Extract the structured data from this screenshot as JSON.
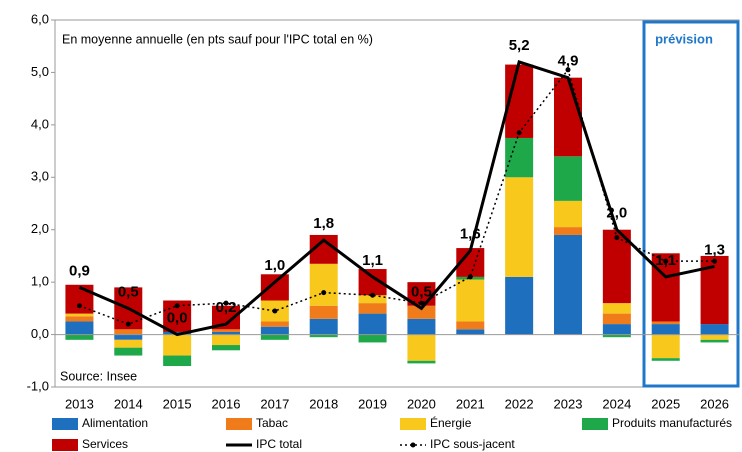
{
  "chart_data": {
    "type": "bar",
    "annotations": [
      "En moyenne annuelle (en pts sauf pour l'IPC total en %)",
      "Source: Insee",
      "prévision"
    ],
    "categories": [
      "2013",
      "2014",
      "2015",
      "2016",
      "2017",
      "2018",
      "2019",
      "2020",
      "2021",
      "2022",
      "2023",
      "2024",
      "2025",
      "2026"
    ],
    "ylim": [
      -1,
      6
    ],
    "yticks": [
      {
        "value": -1,
        "label": "-1,0"
      },
      {
        "value": 0,
        "label": "0,0"
      },
      {
        "value": 1,
        "label": "1,0"
      },
      {
        "value": 2,
        "label": "2,0"
      },
      {
        "value": 3,
        "label": "3,0"
      },
      {
        "value": 4,
        "label": "4,0"
      },
      {
        "value": 5,
        "label": "5,0"
      },
      {
        "value": 6,
        "label": "6,0"
      }
    ],
    "stacked": true,
    "series": [
      {
        "name": "Alimentation",
        "color": "#1f6fbf",
        "values": [
          0.25,
          -0.1,
          0.05,
          0.05,
          0.15,
          0.3,
          0.4,
          0.3,
          0.1,
          1.1,
          1.9,
          0.2,
          0.2,
          0.2
        ]
      },
      {
        "name": "Tabac",
        "color": "#f07b1b",
        "values": [
          0.1,
          0.1,
          0.0,
          0.05,
          0.1,
          0.25,
          0.2,
          0.25,
          0.15,
          0.0,
          0.15,
          0.2,
          0.05,
          0.0
        ]
      },
      {
        "name": "Énergie",
        "color": "#f8c81c",
        "values": [
          0.05,
          -0.15,
          -0.4,
          -0.2,
          0.4,
          0.8,
          0.15,
          -0.5,
          0.8,
          1.9,
          0.5,
          0.2,
          -0.45,
          -0.1
        ]
      },
      {
        "name": "Produits manufacturés",
        "color": "#1ea84a",
        "values": [
          -0.1,
          -0.15,
          -0.2,
          -0.1,
          -0.1,
          -0.05,
          -0.15,
          -0.05,
          0.05,
          0.75,
          0.85,
          -0.05,
          -0.05,
          -0.05
        ]
      },
      {
        "name": "Services",
        "color": "#c00000",
        "values": [
          0.55,
          0.8,
          0.6,
          0.45,
          0.5,
          0.55,
          0.5,
          0.45,
          0.55,
          1.4,
          1.5,
          1.4,
          1.3,
          1.3
        ]
      },
      {
        "name": "IPC total",
        "type": "line",
        "color": "#000000",
        "values": [
          0.9,
          0.5,
          0.0,
          0.2,
          1.0,
          1.8,
          1.1,
          0.5,
          1.6,
          5.2,
          4.9,
          2.0,
          1.1,
          1.3
        ],
        "value_labels": [
          "0,9",
          "0,5",
          "0,0",
          "0,2",
          "1,0",
          "1,8",
          "1,1",
          "0,5",
          "1,6",
          "5,2",
          "4,9",
          "2,0",
          "1,1",
          "1,3"
        ]
      },
      {
        "name": "IPC sous-jacent",
        "type": "line",
        "dashed": true,
        "color": "#000000",
        "values": [
          0.55,
          0.2,
          0.55,
          0.6,
          0.45,
          0.8,
          0.75,
          0.6,
          1.1,
          3.85,
          5.05,
          1.85,
          1.4,
          1.4
        ]
      }
    ]
  }
}
